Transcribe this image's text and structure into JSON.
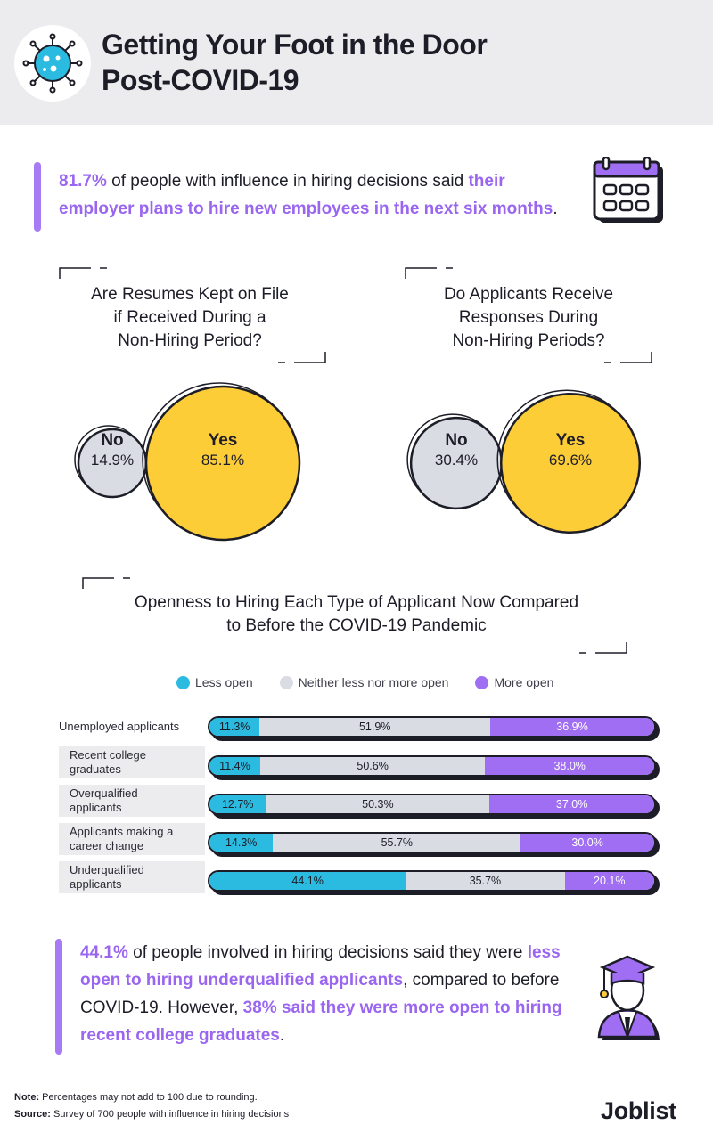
{
  "header": {
    "title_line1": "Getting Your Foot in the Door",
    "title_line2": "Post-COVID-19"
  },
  "intro": {
    "stat": "81.7%",
    "text_plain": " of people with influence in hiring decisions said ",
    "text_highlight": "their employer plans to hire new employees in the next six months",
    "text_end": "."
  },
  "pie_charts": [
    {
      "title_lines": [
        "Are Resumes Kept on File",
        "if Received During a",
        "Non-Hiring Period?"
      ],
      "no_label": "No",
      "no_value": "14.9%",
      "yes_label": "Yes",
      "yes_value": "85.1%"
    },
    {
      "title_lines": [
        "Do Applicants Receive",
        "Responses During",
        "Non-Hiring Periods?"
      ],
      "no_label": "No",
      "no_value": "30.4%",
      "yes_label": "Yes",
      "yes_value": "69.6%"
    }
  ],
  "bar_section": {
    "title_line1": "Openness to Hiring Each Type of Applicant Now Compared",
    "title_line2": "to Before the COVID-19 Pandemic",
    "legend": [
      "Less open",
      "Neither less nor more open",
      "More open"
    ]
  },
  "colors": {
    "less": "#2bbbe0",
    "neither": "#d9dce3",
    "more": "#a06ef2",
    "yes": "#fdcd37",
    "no": "#d9dce3",
    "accent": "#9a66f0"
  },
  "chart_data": [
    {
      "type": "pie",
      "title": "Are Resumes Kept on File if Received During a Non-Hiring Period?",
      "categories": [
        "No",
        "Yes"
      ],
      "values": [
        14.9,
        85.1
      ]
    },
    {
      "type": "pie",
      "title": "Do Applicants Receive Responses During Non-Hiring Periods?",
      "categories": [
        "No",
        "Yes"
      ],
      "values": [
        30.4,
        69.6
      ]
    },
    {
      "type": "bar",
      "stacked": true,
      "orientation": "horizontal",
      "title": "Openness to Hiring Each Type of Applicant Now Compared to Before the COVID-19 Pandemic",
      "categories": [
        "Unemployed applicants",
        "Recent college graduates",
        "Overqualified applicants",
        "Applicants making a career change",
        "Underqualified applicants"
      ],
      "series": [
        {
          "name": "Less open",
          "values": [
            11.3,
            11.4,
            12.7,
            14.3,
            44.1
          ],
          "labels": [
            "11.3%",
            "11.4%",
            "12.7%",
            "14.3%",
            "44.1%"
          ]
        },
        {
          "name": "Neither less nor more open",
          "values": [
            51.9,
            50.6,
            50.3,
            55.7,
            35.7
          ],
          "labels": [
            "51.9%",
            "50.6%",
            "50.3%",
            "55.7%",
            "35.7%"
          ]
        },
        {
          "name": "More open",
          "values": [
            36.9,
            38.0,
            37.0,
            30.0,
            20.1
          ],
          "labels": [
            "36.9%",
            "38.0%",
            "37.0%",
            "30.0%",
            "20.1%"
          ]
        }
      ],
      "legend": "top"
    }
  ],
  "row_labels": [
    [
      "Unemployed applicants"
    ],
    [
      "Recent college",
      "graduates"
    ],
    [
      "Overqualified",
      "applicants"
    ],
    [
      "Applicants making a",
      "career change"
    ],
    [
      "Underqualified",
      "applicants"
    ]
  ],
  "conclusion": {
    "stat": "44.1%",
    "text1": " of people involved in hiring decisions said they were ",
    "hl1": "less open to hiring underqualified applicants",
    "text2": ", compared to before COVID-19. However, ",
    "hl2": "38% said they were more open to hiring recent college graduates",
    "text3": "."
  },
  "footer": {
    "note_label": "Note:",
    "note_text": " Percentages may not add to 100 due to rounding.",
    "source_label": "Source:",
    "source_text": " Survey of 700 people with influence in hiring decisions",
    "logo": "Joblist"
  }
}
